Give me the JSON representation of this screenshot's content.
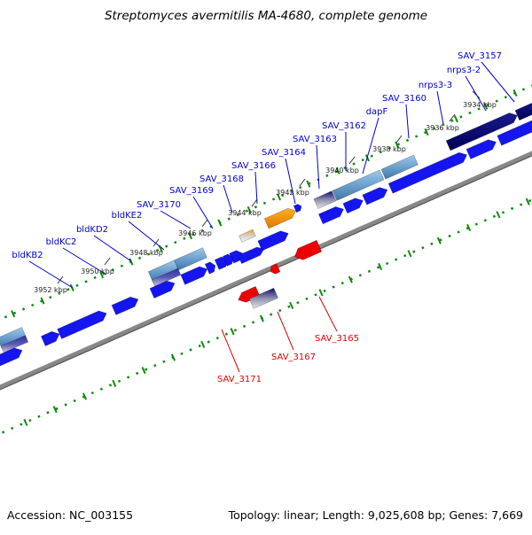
{
  "title": "Streptomyces avermitilis MA-4680, complete genome",
  "footer": {
    "accession": "Accession: NC_003155",
    "stats": "Topology: linear; Length: 9,025,608 bp; Genes: 7,669"
  },
  "colors": {
    "forward_label": "#0000cc",
    "reverse_label": "#dd0000",
    "scale_dots": "#118811",
    "backbone": "#888888"
  },
  "scale_labels": [
    "3934 kbp",
    "3936 kbp",
    "3938 kbp",
    "3940 kbp",
    "3942 kbp",
    "3944 kbp",
    "3946 kbp",
    "3948 kbp",
    "3950 kbp",
    "3952 kbp"
  ],
  "forward_gene_labels": [
    "SAV_3157",
    "nrps3-2",
    "nrps3-3",
    "SAV_3160",
    "dapF",
    "SAV_3162",
    "SAV_3163",
    "SAV_3164",
    "SAV_3166",
    "SAV_3168",
    "SAV_3169",
    "SAV_3170",
    "bldKE2",
    "bldKD2",
    "bldKC2",
    "bldKB2"
  ],
  "reverse_gene_labels": [
    "SAV_3165",
    "SAV_3167",
    "SAV_3171"
  ]
}
